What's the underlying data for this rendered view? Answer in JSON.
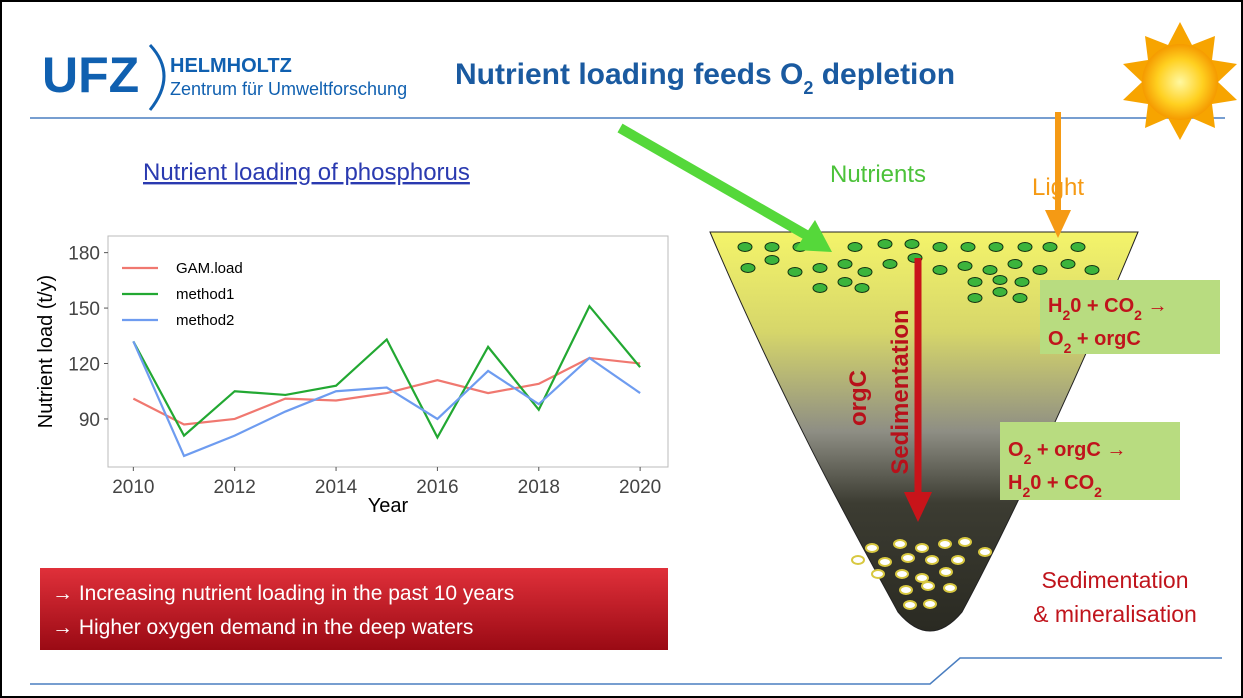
{
  "header": {
    "logo": "UFZ",
    "org": "HELMHOLTZ",
    "org_sub": "Zentrum für Umweltforschung",
    "title_parts": [
      "Nutrient loading feeds O",
      "2",
      " depletion"
    ]
  },
  "link": "Nutrient loading of phosphorus",
  "chart_data": {
    "type": "line",
    "xlabel": "Year",
    "ylabel": "Nutrient load (t/y)",
    "x": [
      2010,
      2011,
      2012,
      2013,
      2014,
      2015,
      2016,
      2017,
      2018,
      2019,
      2020
    ],
    "series": [
      {
        "name": "GAM.load",
        "color": "#f07870",
        "values": [
          101,
          87,
          90,
          101,
          100,
          104,
          111,
          104,
          109,
          123,
          120
        ]
      },
      {
        "name": "method1",
        "color": "#22a832",
        "values": [
          132,
          81,
          105,
          103,
          108,
          133,
          80,
          129,
          95,
          151,
          118
        ]
      },
      {
        "name": "method2",
        "color": "#6e9cf0",
        "values": [
          132,
          70,
          81,
          94,
          105,
          107,
          90,
          116,
          98,
          123,
          104
        ]
      }
    ],
    "xlim": [
      2009.5,
      2020.55
    ],
    "xticks": [
      2010,
      2012,
      2014,
      2016,
      2018,
      2020
    ],
    "ylim": [
      64,
      189
    ],
    "yticks": [
      90,
      120,
      150,
      180
    ],
    "legend": "top-left"
  },
  "diagram": {
    "nutrients": "Nutrients",
    "light": "Light",
    "sedimentation": "Sedimentation",
    "orgc": "orgC",
    "box1": [
      [
        "H",
        "2",
        "0 + CO",
        "2",
        " →"
      ],
      [
        "O",
        "2",
        " + orgC"
      ]
    ],
    "box2": [
      [
        "O",
        "2",
        " + orgC →"
      ],
      [
        "H",
        "2",
        "0 + CO",
        "2"
      ]
    ],
    "mineral": [
      "Sedimentation",
      "& mineralisation"
    ]
  },
  "callout": [
    "→ Increasing nutrient loading in the past 10 years",
    "→ Higher oxygen demand in the deep waters"
  ]
}
